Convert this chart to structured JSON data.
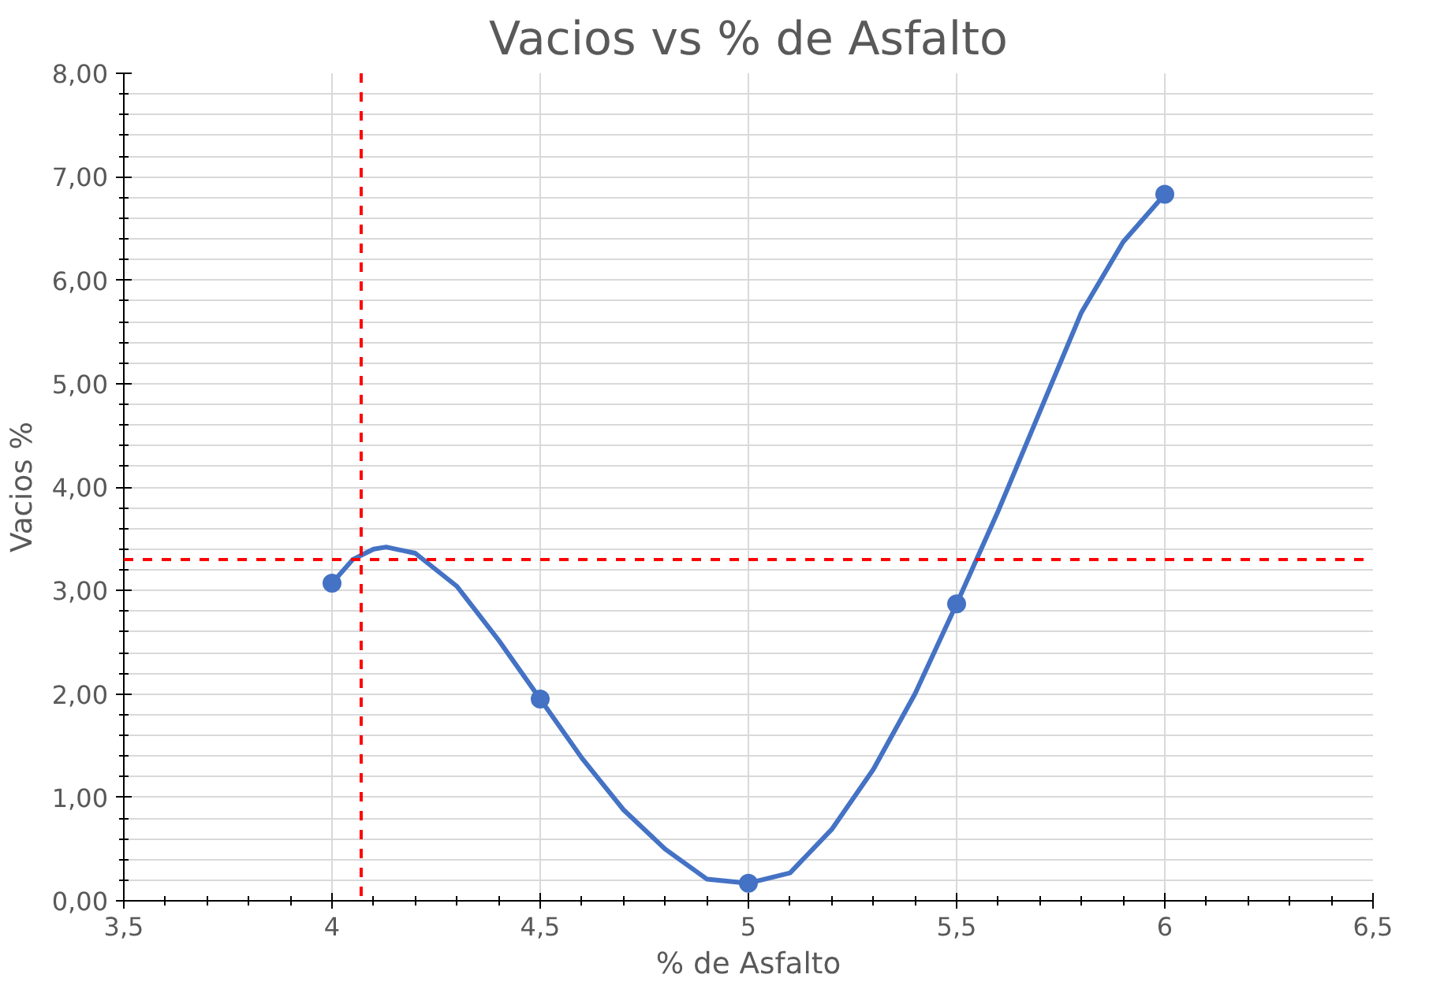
{
  "chart_data": {
    "type": "line",
    "title": "Vacios vs % de Asfalto",
    "xlabel": "% de Asfalto",
    "ylabel": "Vacios %",
    "series": [
      {
        "color": "#4472c4",
        "marker": "none",
        "x": [
          4,
          4.05,
          4.1,
          4.13,
          4.2,
          4.3,
          4.4,
          4.5,
          4.6,
          4.7,
          4.8,
          4.9,
          5,
          5.1,
          5.2,
          5.3,
          5.4,
          5.5,
          5.6,
          5.7,
          5.8,
          5.9,
          6
        ],
        "values": [
          3.07,
          3.3,
          3.4,
          3.42,
          3.36,
          3.04,
          2.52,
          1.95,
          1.38,
          0.88,
          0.5,
          0.21,
          0.17,
          0.27,
          0.69,
          1.27,
          2.0,
          2.87,
          3.77,
          4.73,
          5.69,
          6.37,
          6.83
        ]
      },
      {
        "type": "scatter",
        "color": "#4472c4",
        "marker": "circle",
        "x": [
          4,
          4.5,
          5,
          5.5,
          6
        ],
        "values": [
          3.07,
          1.95,
          0.17,
          2.87,
          6.83
        ]
      }
    ],
    "line_style": "solid",
    "grid": true,
    "xlim": [
      3.5,
      6.5
    ],
    "xticks": [
      {
        "value": 3.5,
        "label": "3,5"
      },
      4,
      {
        "value": 4.5,
        "label": "4,5"
      },
      5,
      {
        "value": 5.5,
        "label": "5,5"
      },
      6,
      {
        "value": 6.5,
        "label": "6,5"
      }
    ],
    "ylim": [
      0,
      8
    ],
    "yticks": [
      {
        "value": 0,
        "label": "0,00"
      },
      {
        "value": 1,
        "label": "1,00"
      },
      {
        "value": 2,
        "label": "2,00"
      },
      {
        "value": 3,
        "label": "3,00"
      },
      {
        "value": 4,
        "label": "4,00"
      },
      {
        "value": 5,
        "label": "5,00"
      },
      {
        "value": 6,
        "label": "6,00"
      },
      {
        "value": 7,
        "label": "7,00"
      },
      {
        "value": 8,
        "label": "8,00"
      }
    ],
    "ref_lines": [
      {
        "axis": "y",
        "value": 3.3,
        "color": "#ff0000",
        "line_style": "dashed"
      },
      {
        "axis": "x",
        "value": 4.07,
        "color": "#ff0000",
        "line_style": "dashed"
      }
    ]
  }
}
